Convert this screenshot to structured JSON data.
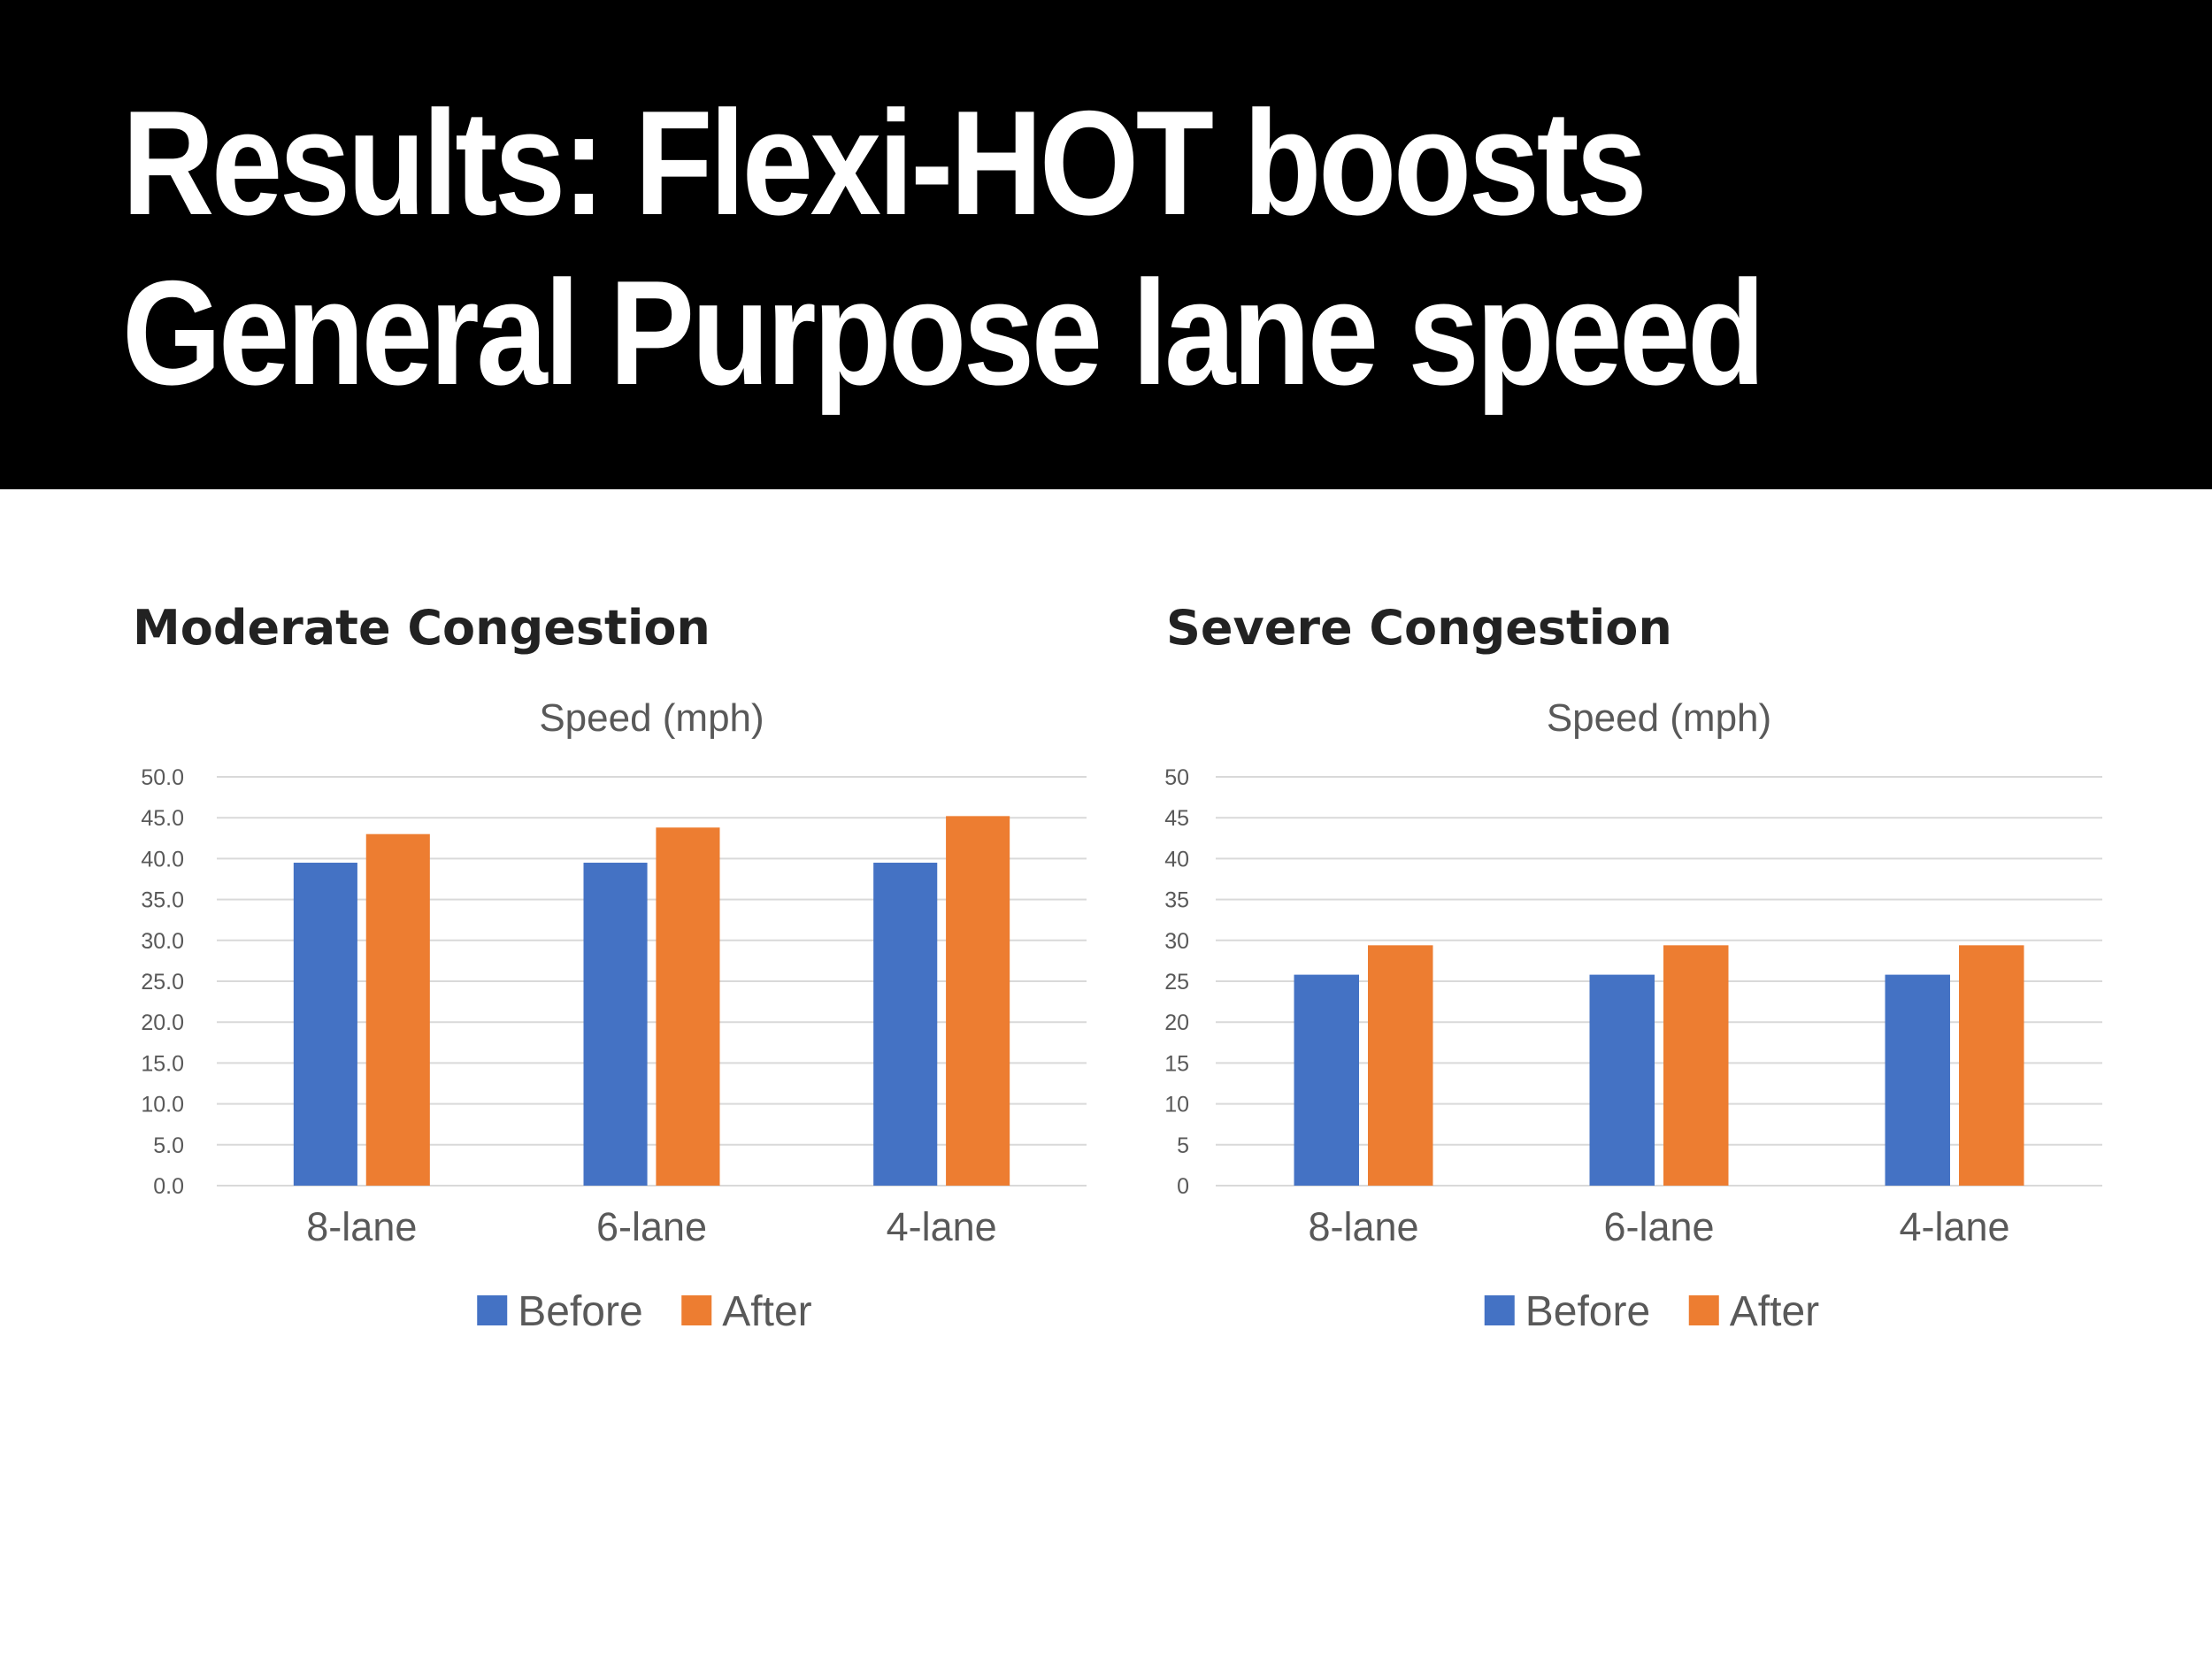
{
  "headline": {
    "line1": "Results: Flexi-HOT boosts",
    "line2": "General Purpose lane speed"
  },
  "chart_data": [
    {
      "type": "bar",
      "panel_title": "Moderate Congestion",
      "title": "Speed (mph)",
      "categories": [
        "8-lane",
        "6-lane",
        "4-lane"
      ],
      "series": [
        {
          "name": "Before",
          "color": "#4472c4",
          "values": [
            39.5,
            39.5,
            39.5
          ]
        },
        {
          "name": "After",
          "color": "#ed7d31",
          "values": [
            43.0,
            43.8,
            45.2
          ]
        }
      ],
      "ylim": [
        0,
        50
      ],
      "yticks": [
        "0.0",
        "5.0",
        "10.0",
        "15.0",
        "20.0",
        "25.0",
        "30.0",
        "35.0",
        "40.0",
        "45.0",
        "50.0"
      ],
      "legend": "bottom",
      "grid": true
    },
    {
      "type": "bar",
      "panel_title": "Severe Congestion",
      "title": "Speed (mph)",
      "categories": [
        "8-lane",
        "6-lane",
        "4-lane"
      ],
      "series": [
        {
          "name": "Before",
          "color": "#4472c4",
          "values": [
            25.8,
            25.8,
            25.8
          ]
        },
        {
          "name": "After",
          "color": "#ed7d31",
          "values": [
            29.4,
            29.4,
            29.4
          ]
        }
      ],
      "ylim": [
        0,
        50
      ],
      "yticks": [
        "0",
        "5",
        "10",
        "15",
        "20",
        "25",
        "30",
        "35",
        "40",
        "45",
        "50"
      ],
      "legend": "bottom",
      "grid": true
    }
  ]
}
